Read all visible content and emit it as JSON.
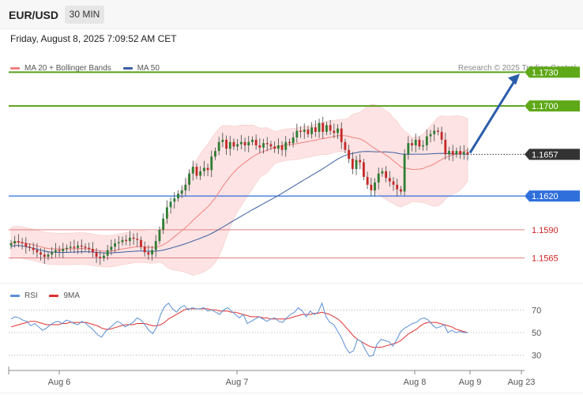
{
  "header": {
    "symbol": "EUR/USD",
    "timeframe": "30 MIN",
    "datetime": "Friday, August 8, 2025 7:09:52 AM CET"
  },
  "legend": {
    "ma20": "MA 20 + Bollinger Bands",
    "ma50": "MA 50",
    "credit": "Research © 2025 Trading Central"
  },
  "rsi_legend": {
    "rsi": "RSI",
    "ma9": "9MA"
  },
  "colors": {
    "up_candle": "#2e7d32",
    "down_candle": "#c62828",
    "resistance_green": "#5aa01e",
    "support_blue": "#2f6fdb",
    "support_red": "#e08080",
    "ma20": "#f08080",
    "ma50": "#3a5fa0",
    "bollinger_fill": "#fde3e3",
    "arrow": "#2a5caa",
    "rsi": "#5b8fd6",
    "rsi_ma": "#e03030"
  },
  "chart_data": [
    {
      "type": "candlestick",
      "title": "",
      "ylim": [
        1.1545,
        1.1745
      ],
      "x_labels": [
        "Aug 6",
        "Aug 7",
        "Aug 8",
        "Aug 9",
        "Aug 23"
      ],
      "current_price": 1.1657,
      "levels": [
        {
          "value": 1.173,
          "label": "1.1730",
          "kind": "resistance"
        },
        {
          "value": 1.17,
          "label": "1.1700",
          "kind": "resistance"
        },
        {
          "value": 1.162,
          "label": "1.1620",
          "kind": "support"
        },
        {
          "value": 1.159,
          "label": "1.1590",
          "kind": "support"
        },
        {
          "value": 1.1565,
          "label": "1.1565",
          "kind": "support"
        }
      ],
      "forecast_target": 1.173,
      "close": [
        1.1578,
        1.158,
        1.1579,
        1.1578,
        1.1575,
        1.1574,
        1.1572,
        1.157,
        1.1568,
        1.1566,
        1.1568,
        1.157,
        1.1572,
        1.1571,
        1.1573,
        1.1574,
        1.1575,
        1.1574,
        1.1576,
        1.1575,
        1.1574,
        1.1573,
        1.157,
        1.1566,
        1.1565,
        1.1567,
        1.1572,
        1.1575,
        1.1578,
        1.1579,
        1.1581,
        1.158,
        1.1583,
        1.1582,
        1.1581,
        1.1575,
        1.157,
        1.1568,
        1.1572,
        1.158,
        1.159,
        1.16,
        1.161,
        1.1615,
        1.1618,
        1.1622,
        1.1625,
        1.163,
        1.164,
        1.1646,
        1.1638,
        1.1642,
        1.1645,
        1.1643,
        1.1655,
        1.166,
        1.1668,
        1.167,
        1.1662,
        1.1668,
        1.1664,
        1.1666,
        1.1668,
        1.1665,
        1.1668,
        1.167,
        1.1665,
        1.1663,
        1.1667,
        1.1666,
        1.1664,
        1.1662,
        1.1665,
        1.1661,
        1.1668,
        1.1667,
        1.1672,
        1.1678,
        1.1677,
        1.1679,
        1.1675,
        1.1681,
        1.1677,
        1.1685,
        1.1677,
        1.1683,
        1.1678,
        1.1676,
        1.168,
        1.1668,
        1.1661,
        1.1653,
        1.1644,
        1.1652,
        1.165,
        1.1637,
        1.163,
        1.1625,
        1.1632,
        1.164,
        1.1642,
        1.1636,
        1.1633,
        1.163,
        1.1626,
        1.1624,
        1.1657,
        1.1667,
        1.1665,
        1.167,
        1.1664,
        1.1665,
        1.1673,
        1.1675,
        1.1678,
        1.1677,
        1.167,
        1.1657,
        1.166,
        1.1657,
        1.166,
        1.1657,
        1.1659,
        1.1657
      ]
    },
    {
      "type": "line",
      "title": "",
      "ylim": [
        20,
        80
      ],
      "y_ticks": [
        70,
        50,
        30
      ],
      "series": [
        {
          "name": "RSI",
          "values": [
            62,
            64,
            63,
            61,
            60,
            56,
            58,
            55,
            52,
            54,
            57,
            59,
            60,
            58,
            61,
            60,
            58,
            57,
            60,
            58,
            55,
            52,
            48,
            46,
            51,
            54,
            57,
            60,
            58,
            55,
            57,
            59,
            63,
            61,
            57,
            52,
            49,
            55,
            66,
            73,
            76,
            71,
            68,
            72,
            74,
            70,
            72,
            71,
            71,
            72,
            69,
            70,
            68,
            66,
            70,
            72,
            69,
            66,
            63,
            66,
            58,
            60,
            62,
            64,
            62,
            60,
            62,
            63,
            60,
            59,
            63,
            66,
            68,
            72,
            69,
            64,
            69,
            66,
            68,
            76,
            64,
            59,
            57,
            51,
            45,
            37,
            32,
            34,
            44,
            42,
            35,
            29,
            30,
            40,
            44,
            43,
            42,
            38,
            44,
            51,
            54,
            56,
            58,
            59,
            62,
            63,
            61,
            57,
            54,
            55,
            57,
            50,
            52,
            50,
            51,
            50,
            50
          ]
        },
        {
          "name": "9MA",
          "values": [
            55,
            56,
            57,
            58,
            59,
            60,
            60,
            59,
            58,
            57,
            57,
            57,
            57,
            58,
            58,
            59,
            59,
            59,
            59,
            59,
            58,
            57,
            56,
            54,
            53,
            53,
            54,
            55,
            56,
            57,
            57,
            57,
            58,
            58,
            58,
            57,
            56,
            56,
            57,
            59,
            62,
            64,
            66,
            68,
            70,
            71,
            71,
            71,
            71,
            71,
            71,
            70,
            70,
            69,
            69,
            69,
            68,
            68,
            67,
            66,
            65,
            64,
            64,
            64,
            63,
            63,
            62,
            62,
            62,
            62,
            62,
            63,
            64,
            65,
            66,
            66,
            66,
            67,
            67,
            68,
            67,
            66,
            64,
            62,
            59,
            55,
            51,
            47,
            44,
            42,
            40,
            38,
            37,
            37,
            37,
            38,
            39,
            40,
            41,
            43,
            46,
            49,
            51,
            53,
            56,
            58,
            59,
            59,
            59,
            58,
            57,
            56,
            55,
            53,
            52,
            51,
            50
          ]
        }
      ]
    }
  ]
}
